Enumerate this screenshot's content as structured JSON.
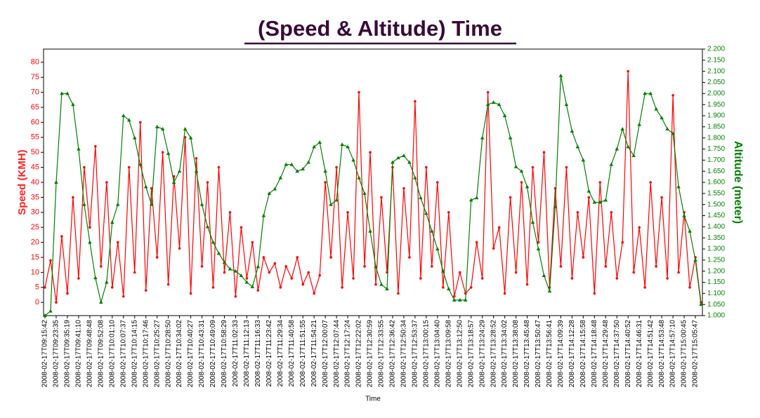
{
  "chart_data": {
    "type": "line",
    "title": "(Speed & Altitude) Time",
    "x_label": "Time",
    "y_label": "Speed (KMH)",
    "y2_label": "Altitude (meter)",
    "categories": [
      "2008-02-17T09:15:42",
      null,
      "2008-02-17T09:23:35",
      null,
      "2008-02-17T09:35:19",
      null,
      "2008-02-17T09:41:10",
      null,
      "2008-02-17T09:48:48",
      null,
      "2008-02-17T09:52:08",
      null,
      "2008-02-17T10:01:10",
      null,
      "2008-02-17T10:07:37",
      null,
      "2008-02-17T10:14:15",
      null,
      "2008-02-17T10:17:46",
      null,
      "2008-02-17T10:25:27",
      null,
      "2008-02-17T10:28:50",
      null,
      "2008-02-17T10:34:02",
      null,
      "2008-02-17T10:40:27",
      null,
      "2008-02-17T10:43:31",
      null,
      "2008-02-17T10:49:09",
      null,
      "2008-02-17T10:58:29",
      null,
      "2008-02-17T11:02:33",
      null,
      "2008-02-17T11:12:13",
      null,
      "2008-02-17T11:16:33",
      null,
      "2008-02-17T11:23:42",
      null,
      "2008-02-17T11:29:34",
      null,
      "2008-02-17T11:40:58",
      null,
      "2008-02-17T11:51:55",
      null,
      "2008-02-17T11:54:21",
      null,
      "2008-02-17T12:00:07",
      null,
      "2008-02-17T12:07:44",
      null,
      "2008-02-17T12:17:24",
      null,
      "2008-02-17T12:22:02",
      null,
      "2008-02-17T12:30:59",
      null,
      "2008-02-17T12:33:55",
      null,
      "2008-02-17T12:36:42",
      null,
      "2008-02-17T12:50:34",
      null,
      "2008-02-17T12:53:37",
      null,
      "2008-02-17T13:00:15",
      null,
      "2008-02-17T13:04:40",
      null,
      "2008-02-17T13:09:58",
      null,
      "2008-02-17T13:12:50",
      null,
      "2008-02-17T13:18:57",
      null,
      "2008-02-17T13:24:29",
      null,
      "2008-02-17T13:28:52",
      null,
      "2008-02-17T13:34:02",
      null,
      "2008-02-17T13:38:08",
      null,
      "2008-02-17T13:45:48",
      null,
      "2008-02-17T13:50:47",
      null,
      "2008-02-17T13:56:41",
      null,
      "2008-02-17T14:09:39",
      null,
      "2008-02-17T14:12:28",
      null,
      "2008-02-17T14:15:58",
      null,
      "2008-02-17T14:18:48",
      null,
      "2008-02-17T14:29:48",
      null,
      "2008-02-17T14:37:50",
      null,
      "2008-02-17T14:40:52",
      null,
      "2008-02-17T14:46:31",
      null,
      "2008-02-17T14:51:42",
      null,
      "2008-02-17T14:53:48",
      null,
      "2008-02-17T14:57:10",
      null,
      "2008-02-17T15:00:45",
      null,
      "2008-02-17T15:05:47",
      null
    ],
    "series": [
      {
        "name": "Speed",
        "color": "#ff0000",
        "marker": "circle",
        "values": [
          5,
          14,
          0,
          22,
          3,
          35,
          8,
          45,
          25,
          52,
          12,
          40,
          5,
          20,
          2,
          45,
          10,
          60,
          4,
          38,
          15,
          50,
          6,
          42,
          18,
          55,
          3,
          48,
          12,
          40,
          5,
          45,
          10,
          30,
          2,
          25,
          8,
          20,
          4,
          15,
          10,
          13,
          5,
          12,
          8,
          15,
          6,
          10,
          3,
          9,
          40,
          15,
          45,
          5,
          30,
          8,
          70,
          12,
          50,
          6,
          35,
          10,
          45,
          3,
          38,
          15,
          67,
          8,
          45,
          12,
          40,
          5,
          30,
          2,
          10,
          3,
          5,
          20,
          8,
          70,
          18,
          25,
          3,
          35,
          10,
          40,
          6,
          45,
          20,
          50,
          5,
          38,
          12,
          45,
          8,
          30,
          15,
          35,
          3,
          40,
          12,
          30,
          8,
          20,
          77,
          10,
          25,
          5,
          40,
          12,
          35,
          8,
          69,
          10,
          30,
          5,
          15,
          0
        ]
      },
      {
        "name": "Altitude",
        "color": "#008000",
        "marker": "triangle",
        "axis": "y2",
        "values": [
          1.0,
          1.02,
          1.6,
          2.0,
          2.0,
          1.95,
          1.75,
          1.5,
          1.33,
          1.17,
          1.06,
          1.15,
          1.42,
          1.5,
          1.9,
          1.88,
          1.8,
          1.68,
          1.58,
          1.5,
          1.85,
          1.84,
          1.73,
          1.6,
          1.65,
          1.84,
          1.8,
          1.65,
          1.5,
          1.4,
          1.33,
          1.28,
          1.24,
          1.21,
          1.2,
          1.18,
          1.15,
          1.13,
          1.22,
          1.45,
          1.55,
          1.57,
          1.62,
          1.68,
          1.68,
          1.65,
          1.66,
          1.69,
          1.76,
          1.78,
          1.65,
          1.5,
          1.52,
          1.77,
          1.76,
          1.7,
          1.62,
          1.55,
          1.38,
          1.22,
          1.14,
          1.12,
          1.69,
          1.71,
          1.72,
          1.69,
          1.62,
          1.53,
          1.46,
          1.38,
          1.3,
          1.2,
          1.12,
          1.07,
          1.07,
          1.07,
          1.52,
          1.53,
          1.8,
          1.95,
          1.96,
          1.95,
          1.9,
          1.8,
          1.67,
          1.65,
          1.58,
          1.42,
          1.3,
          1.18,
          1.11,
          1.49,
          2.08,
          1.95,
          1.83,
          1.76,
          1.7,
          1.56,
          1.51,
          1.51,
          1.52,
          1.68,
          1.75,
          1.84,
          1.76,
          1.72,
          1.86,
          2.0,
          2.0,
          1.93,
          1.89,
          1.84,
          1.82,
          1.58,
          1.45,
          1.38,
          1.25,
          1.05
        ]
      }
    ],
    "ylim": [
      -4.4,
      84.4
    ],
    "yticks": [
      0,
      5,
      10,
      15,
      20,
      25,
      30,
      35,
      40,
      45,
      50,
      55,
      60,
      65,
      70,
      75,
      80
    ],
    "y2lim": [
      1.0,
      2.2
    ],
    "y2ticks": [
      {
        "value": 1.0,
        "label": "1.000"
      },
      {
        "value": 1.05,
        "label": "1.050"
      },
      {
        "value": 1.1,
        "label": "1.100"
      },
      {
        "value": 1.15,
        "label": "1.150"
      },
      {
        "value": 1.2,
        "label": "1.200"
      },
      {
        "value": 1.25,
        "label": "1.250"
      },
      {
        "value": 1.3,
        "label": "1.300"
      },
      {
        "value": 1.35,
        "label": "1.350"
      },
      {
        "value": 1.4,
        "label": "1.400"
      },
      {
        "value": 1.45,
        "label": "1.450"
      },
      {
        "value": 1.5,
        "label": "1.500"
      },
      {
        "value": 1.55,
        "label": "1.550"
      },
      {
        "value": 1.6,
        "label": "1.600"
      },
      {
        "value": 1.65,
        "label": "1.650"
      },
      {
        "value": 1.7,
        "label": "1.700"
      },
      {
        "value": 1.75,
        "label": "1.750"
      },
      {
        "value": 1.8,
        "label": "1.800"
      },
      {
        "value": 1.85,
        "label": "1.850"
      },
      {
        "value": 1.9,
        "label": "1.900"
      },
      {
        "value": 1.95,
        "label": "1.950"
      },
      {
        "value": 2.0,
        "label": "2.000"
      },
      {
        "value": 2.05,
        "label": "2.050"
      },
      {
        "value": 2.1,
        "label": "2.100"
      },
      {
        "value": 2.15,
        "label": "2.150"
      },
      {
        "value": 2.2,
        "label": "2.200"
      }
    ]
  }
}
